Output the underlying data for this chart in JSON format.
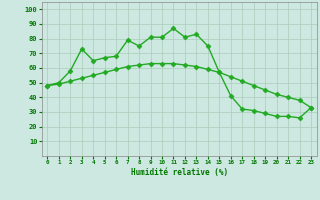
{
  "x": [
    0,
    1,
    2,
    3,
    4,
    5,
    6,
    7,
    8,
    9,
    10,
    11,
    12,
    13,
    14,
    15,
    16,
    17,
    18,
    19,
    20,
    21,
    22,
    23
  ],
  "line1": [
    48,
    50,
    58,
    73,
    65,
    67,
    68,
    79,
    75,
    81,
    81,
    87,
    81,
    83,
    75,
    57,
    41,
    32,
    31,
    29,
    27,
    27,
    26,
    33
  ],
  "line2": [
    48,
    49,
    51,
    53,
    55,
    57,
    59,
    61,
    62,
    63,
    63,
    63,
    62,
    61,
    59,
    57,
    54,
    51,
    48,
    45,
    42,
    40,
    38,
    33
  ],
  "bg_color": "#cce8e0",
  "grid_color": "#aaccbb",
  "line_color": "#22aa22",
  "xlabel": "Humidité relative (%)",
  "xlim": [
    -0.5,
    23.5
  ],
  "ylim": [
    0,
    105
  ],
  "yticks": [
    10,
    20,
    30,
    40,
    50,
    60,
    70,
    80,
    90,
    100
  ],
  "xticks": [
    0,
    1,
    2,
    3,
    4,
    5,
    6,
    7,
    8,
    9,
    10,
    11,
    12,
    13,
    14,
    15,
    16,
    17,
    18,
    19,
    20,
    21,
    22,
    23
  ],
  "xtick_labels": [
    "0",
    "1",
    "2",
    "3",
    "4",
    "5",
    "6",
    "7",
    "8",
    "9",
    "10",
    "11",
    "12",
    "13",
    "14",
    "15",
    "16",
    "17",
    "18",
    "19",
    "20",
    "21",
    "22",
    "23"
  ],
  "marker": "D",
  "markersize": 2.5,
  "linewidth": 1.0
}
